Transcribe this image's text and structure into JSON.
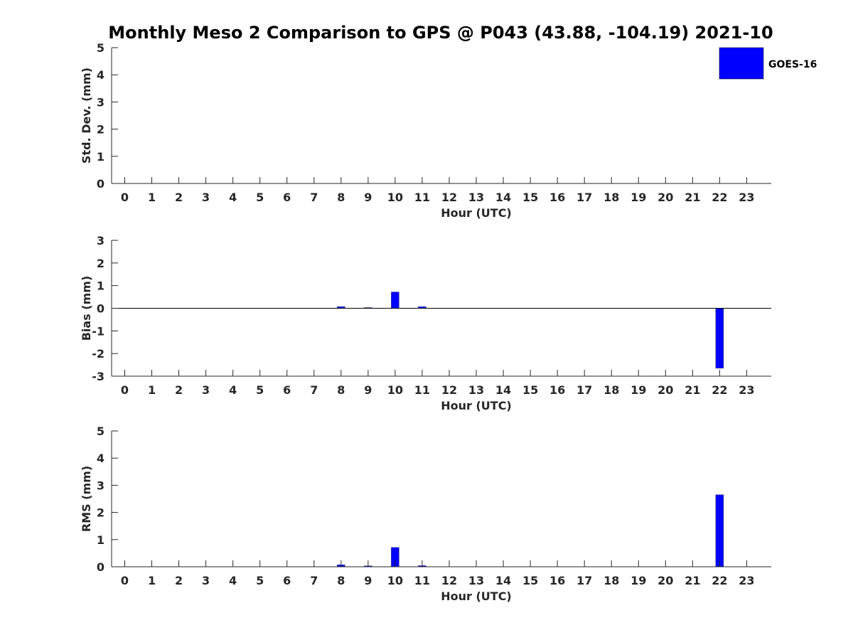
{
  "title": "Monthly Meso 2 Comparison to GPS @ P043 (43.88, -104.19) 2021-10",
  "legend": {
    "label": "GOES-16",
    "color": "#0000ff",
    "position": "top-right"
  },
  "chart_data": [
    {
      "type": "bar",
      "ylabel": "Std. Dev. (mm)",
      "xlabel": "Hour (UTC)",
      "ylim": [
        0,
        5
      ],
      "yticks": [
        0,
        1,
        2,
        3,
        4,
        5
      ],
      "categories": [
        "0",
        "1",
        "2",
        "3",
        "4",
        "5",
        "6",
        "7",
        "8",
        "9",
        "10",
        "11",
        "12",
        "13",
        "14",
        "15",
        "16",
        "17",
        "18",
        "19",
        "20",
        "21",
        "22",
        "23"
      ],
      "series": [
        {
          "name": "GOES-16",
          "values": [
            0,
            0,
            0,
            0,
            0,
            0,
            0,
            0,
            0,
            0,
            0,
            0,
            0,
            0,
            0,
            0,
            0,
            0,
            0,
            0,
            0,
            0,
            0,
            0
          ]
        }
      ],
      "grid": false
    },
    {
      "type": "bar",
      "ylabel": "Bias (mm)",
      "xlabel": "Hour (UTC)",
      "ylim": [
        -3,
        3
      ],
      "yticks": [
        -3,
        -2,
        -1,
        0,
        1,
        2,
        3
      ],
      "categories": [
        "0",
        "1",
        "2",
        "3",
        "4",
        "5",
        "6",
        "7",
        "8",
        "9",
        "10",
        "11",
        "12",
        "13",
        "14",
        "15",
        "16",
        "17",
        "18",
        "19",
        "20",
        "21",
        "22",
        "23"
      ],
      "series": [
        {
          "name": "GOES-16",
          "values": [
            0,
            0,
            0,
            0,
            0,
            0,
            0,
            0,
            0.07,
            0.03,
            0.72,
            0.07,
            0,
            0,
            0,
            0,
            0,
            0,
            0,
            0,
            0,
            0,
            -2.65,
            0
          ]
        }
      ],
      "zero_line": true,
      "grid": false
    },
    {
      "type": "bar",
      "ylabel": "RMS (mm)",
      "xlabel": "Hour (UTC)",
      "ylim": [
        0,
        5
      ],
      "yticks": [
        0,
        1,
        2,
        3,
        4,
        5
      ],
      "categories": [
        "0",
        "1",
        "2",
        "3",
        "4",
        "5",
        "6",
        "7",
        "8",
        "9",
        "10",
        "11",
        "12",
        "13",
        "14",
        "15",
        "16",
        "17",
        "18",
        "19",
        "20",
        "21",
        "22",
        "23"
      ],
      "series": [
        {
          "name": "GOES-16",
          "values": [
            0,
            0,
            0,
            0,
            0,
            0,
            0,
            0,
            0.07,
            0.03,
            0.71,
            0.04,
            0,
            0,
            0,
            0,
            0,
            0,
            0,
            0,
            0,
            0,
            2.65,
            0
          ]
        }
      ],
      "grid": false
    }
  ]
}
